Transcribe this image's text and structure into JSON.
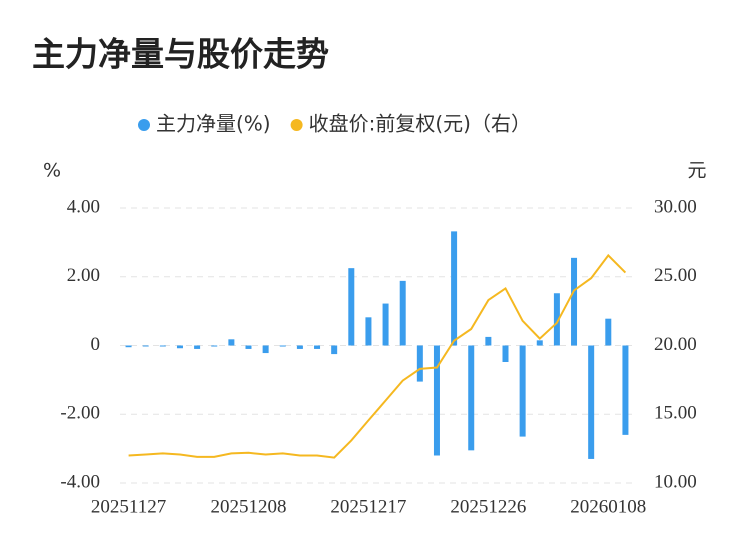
{
  "chart_data": {
    "type": "bar",
    "title": "主力净量与股价走势",
    "y_unit": "%",
    "y2_unit": "元",
    "categories": [
      "20251127",
      null,
      null,
      null,
      null,
      null,
      null,
      "20251208",
      null,
      null,
      null,
      null,
      null,
      null,
      "20251217",
      null,
      null,
      null,
      null,
      null,
      null,
      "20251226",
      null,
      null,
      null,
      null,
      null,
      null,
      "20260108",
      null
    ],
    "series": [
      {
        "name": "主力净量(%)",
        "type": "bar",
        "color": "#3a9ded",
        "values": [
          -0.05,
          -0.02,
          -0.02,
          -0.08,
          -0.1,
          -0.03,
          0.18,
          -0.1,
          -0.22,
          -0.03,
          -0.1,
          -0.1,
          -0.25,
          2.25,
          0.82,
          1.22,
          1.88,
          -1.05,
          -3.2,
          3.32,
          -3.05,
          0.25,
          -0.48,
          -2.65,
          0.15,
          1.52,
          2.55,
          -3.3,
          0.78,
          -2.6
        ]
      },
      {
        "name": "收盘价:前复权(元)（右）",
        "type": "line",
        "axis": "y2",
        "color": "#f5b820",
        "values": [
          12.0,
          12.07,
          12.15,
          12.07,
          11.9,
          11.9,
          12.15,
          12.2,
          12.07,
          12.15,
          12.0,
          12.0,
          11.85,
          13.1,
          14.55,
          16.0,
          17.45,
          18.3,
          18.4,
          20.35,
          21.2,
          23.3,
          24.15,
          21.8,
          20.5,
          21.65,
          24.0,
          24.9,
          26.55,
          25.3
        ]
      }
    ],
    "ylim": [
      -4,
      4
    ],
    "yticks": [
      {
        "value": 4,
        "label": "4.00"
      },
      {
        "value": 2,
        "label": "2.00"
      },
      0,
      {
        "value": -2,
        "label": "-2.00"
      },
      {
        "value": -4,
        "label": "-4.00"
      }
    ],
    "y2lim": [
      10,
      30
    ],
    "y2ticks": [
      {
        "value": 30,
        "label": "30.00"
      },
      {
        "value": 25,
        "label": "25.00"
      },
      {
        "value": 20,
        "label": "20.00"
      },
      {
        "value": 15,
        "label": "15.00"
      },
      {
        "value": 10,
        "label": "10.00"
      }
    ],
    "grid": true
  }
}
